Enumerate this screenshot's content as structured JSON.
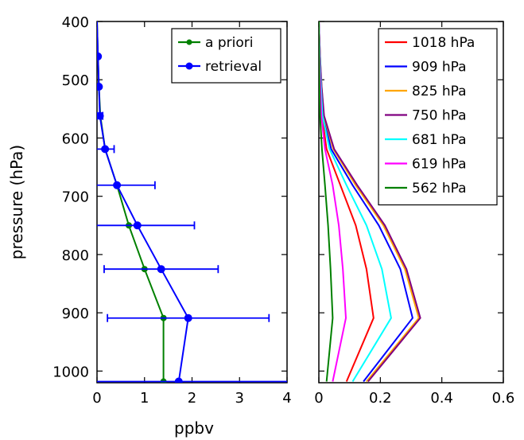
{
  "chart_data": [
    {
      "type": "line",
      "panel": "left",
      "xlabel": "ppbv",
      "ylabel": "pressure (hPa)",
      "xlim": [
        0,
        4
      ],
      "ylim": [
        1020,
        400
      ],
      "y_inverted": true,
      "x_ticks": [
        0,
        1,
        2,
        3,
        4
      ],
      "y_ticks": [
        400,
        500,
        600,
        700,
        800,
        900,
        1000
      ],
      "legend_position": "top-right",
      "series": [
        {
          "name": "a priori",
          "color": "#008000",
          "marker": "circle",
          "points": [
            {
              "x": 0.0,
              "y": 400
            },
            {
              "x": 0.02,
              "y": 460
            },
            {
              "x": 0.04,
              "y": 512
            },
            {
              "x": 0.07,
              "y": 562
            },
            {
              "x": 0.17,
              "y": 619
            },
            {
              "x": 0.42,
              "y": 681
            },
            {
              "x": 0.67,
              "y": 750
            },
            {
              "x": 1.0,
              "y": 825
            },
            {
              "x": 1.4,
              "y": 909
            },
            {
              "x": 1.4,
              "y": 1018
            }
          ]
        },
        {
          "name": "retrieval",
          "color": "#0000ff",
          "marker": "circle",
          "points": [
            {
              "x": 0.0,
              "y": 400
            },
            {
              "x": 0.02,
              "y": 460,
              "err": 0.0
            },
            {
              "x": 0.04,
              "y": 512,
              "err": 0.0
            },
            {
              "x": 0.06,
              "y": 562,
              "err": 0.06
            },
            {
              "x": 0.17,
              "y": 619,
              "err": 0.19
            },
            {
              "x": 0.42,
              "y": 681,
              "err": 0.8
            },
            {
              "x": 0.85,
              "y": 750,
              "err": 1.2
            },
            {
              "x": 1.35,
              "y": 825,
              "err": 1.2
            },
            {
              "x": 1.92,
              "y": 909,
              "err": 1.7
            },
            {
              "x": 1.72,
              "y": 1018,
              "err": 2.3
            }
          ]
        }
      ]
    },
    {
      "type": "line",
      "panel": "right",
      "xlabel": "",
      "ylabel": "",
      "xlim": [
        0,
        0.6
      ],
      "ylim": [
        1020,
        400
      ],
      "y_inverted": true,
      "x_ticks": [
        "0",
        "0.2",
        "0.4",
        "0.6"
      ],
      "x_tick_values": [
        0,
        0.2,
        0.4,
        0.6
      ],
      "legend_position": "top-right",
      "series": [
        {
          "name": "1018 hPa",
          "color": "#ff0000",
          "points": [
            {
              "x": 0,
              "y": 400
            },
            {
              "x": 0.003,
              "y": 460
            },
            {
              "x": 0.006,
              "y": 512
            },
            {
              "x": 0.01,
              "y": 562
            },
            {
              "x": 0.025,
              "y": 619
            },
            {
              "x": 0.07,
              "y": 681
            },
            {
              "x": 0.12,
              "y": 750
            },
            {
              "x": 0.155,
              "y": 825
            },
            {
              "x": 0.178,
              "y": 909
            },
            {
              "x": 0.09,
              "y": 1018
            }
          ]
        },
        {
          "name": "909 hPa",
          "color": "#0000ff",
          "points": [
            {
              "x": 0,
              "y": 400
            },
            {
              "x": 0.004,
              "y": 460
            },
            {
              "x": 0.008,
              "y": 512
            },
            {
              "x": 0.014,
              "y": 562
            },
            {
              "x": 0.04,
              "y": 619
            },
            {
              "x": 0.11,
              "y": 681
            },
            {
              "x": 0.195,
              "y": 750
            },
            {
              "x": 0.265,
              "y": 825
            },
            {
              "x": 0.305,
              "y": 909
            },
            {
              "x": 0.145,
              "y": 1018
            }
          ]
        },
        {
          "name": "825 hPa",
          "color": "#ffa500",
          "points": [
            {
              "x": 0,
              "y": 400
            },
            {
              "x": 0.004,
              "y": 460
            },
            {
              "x": 0.009,
              "y": 512
            },
            {
              "x": 0.016,
              "y": 562
            },
            {
              "x": 0.047,
              "y": 619
            },
            {
              "x": 0.12,
              "y": 681
            },
            {
              "x": 0.21,
              "y": 750
            },
            {
              "x": 0.28,
              "y": 825
            },
            {
              "x": 0.325,
              "y": 909
            },
            {
              "x": 0.155,
              "y": 1018
            }
          ]
        },
        {
          "name": "750 hPa",
          "color": "#800080",
          "points": [
            {
              "x": 0,
              "y": 400
            },
            {
              "x": 0.004,
              "y": 460
            },
            {
              "x": 0.009,
              "y": 512
            },
            {
              "x": 0.017,
              "y": 562
            },
            {
              "x": 0.05,
              "y": 619
            },
            {
              "x": 0.125,
              "y": 681
            },
            {
              "x": 0.215,
              "y": 750
            },
            {
              "x": 0.285,
              "y": 825
            },
            {
              "x": 0.33,
              "y": 909
            },
            {
              "x": 0.16,
              "y": 1018
            }
          ]
        },
        {
          "name": "681 hPa",
          "color": "#00ffff",
          "points": [
            {
              "x": 0,
              "y": 400
            },
            {
              "x": 0.003,
              "y": 460
            },
            {
              "x": 0.007,
              "y": 512
            },
            {
              "x": 0.012,
              "y": 562
            },
            {
              "x": 0.035,
              "y": 619
            },
            {
              "x": 0.09,
              "y": 681
            },
            {
              "x": 0.155,
              "y": 750
            },
            {
              "x": 0.205,
              "y": 825
            },
            {
              "x": 0.235,
              "y": 909
            },
            {
              "x": 0.11,
              "y": 1018
            }
          ]
        },
        {
          "name": "619 hPa",
          "color": "#ff00ff",
          "points": [
            {
              "x": 0,
              "y": 400
            },
            {
              "x": 0.002,
              "y": 460
            },
            {
              "x": 0.005,
              "y": 512
            },
            {
              "x": 0.008,
              "y": 562
            },
            {
              "x": 0.02,
              "y": 619
            },
            {
              "x": 0.045,
              "y": 681
            },
            {
              "x": 0.065,
              "y": 750
            },
            {
              "x": 0.078,
              "y": 825
            },
            {
              "x": 0.088,
              "y": 909
            },
            {
              "x": 0.045,
              "y": 1018
            }
          ]
        },
        {
          "name": "562 hPa",
          "color": "#008000",
          "points": [
            {
              "x": 0,
              "y": 400
            },
            {
              "x": 0.001,
              "y": 460
            },
            {
              "x": 0.002,
              "y": 512
            },
            {
              "x": 0.004,
              "y": 562
            },
            {
              "x": 0.01,
              "y": 619
            },
            {
              "x": 0.02,
              "y": 681
            },
            {
              "x": 0.03,
              "y": 750
            },
            {
              "x": 0.038,
              "y": 825
            },
            {
              "x": 0.045,
              "y": 909
            },
            {
              "x": 0.025,
              "y": 1018
            }
          ]
        }
      ]
    }
  ]
}
